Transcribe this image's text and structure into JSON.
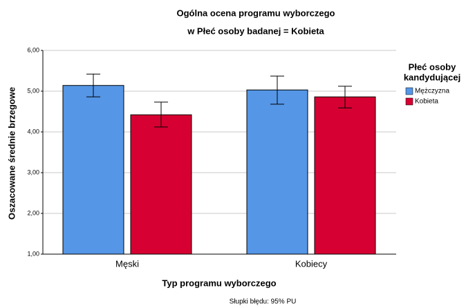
{
  "chart_data": {
    "type": "bar",
    "title": "Ogólna ocena programu wyborczego",
    "subtitle": "w Płeć osoby badanej = Kobieta",
    "x_label": "Typ programu wyborczego",
    "y_label": "Oszacowane średnie brzegowe",
    "legend_title": [
      "Płeć osoby",
      "kandydującej"
    ],
    "footnote": "Słupki błędu: 95% PU",
    "categories": [
      "Męski",
      "Kobiecy"
    ],
    "series": [
      {
        "name": "Mężczyzna",
        "color": "#5596e6",
        "values": [
          5.14,
          5.03
        ],
        "ci_lower": [
          4.86,
          4.68
        ],
        "ci_upper": [
          5.42,
          5.37
        ]
      },
      {
        "name": "Kobieta",
        "color": "#d70032",
        "values": [
          4.42,
          4.86
        ],
        "ci_lower": [
          4.12,
          4.59
        ],
        "ci_upper": [
          4.73,
          5.12
        ]
      }
    ],
    "ylim": [
      1,
      6
    ],
    "yticks": [
      {
        "value": 1,
        "label": "1,00"
      },
      {
        "value": 2,
        "label": "2,00"
      },
      {
        "value": 3,
        "label": "3,00"
      },
      {
        "value": 4,
        "label": "4,00"
      },
      {
        "value": 5,
        "label": "5,00"
      },
      {
        "value": 6,
        "label": "6,00"
      }
    ],
    "grid": true
  }
}
